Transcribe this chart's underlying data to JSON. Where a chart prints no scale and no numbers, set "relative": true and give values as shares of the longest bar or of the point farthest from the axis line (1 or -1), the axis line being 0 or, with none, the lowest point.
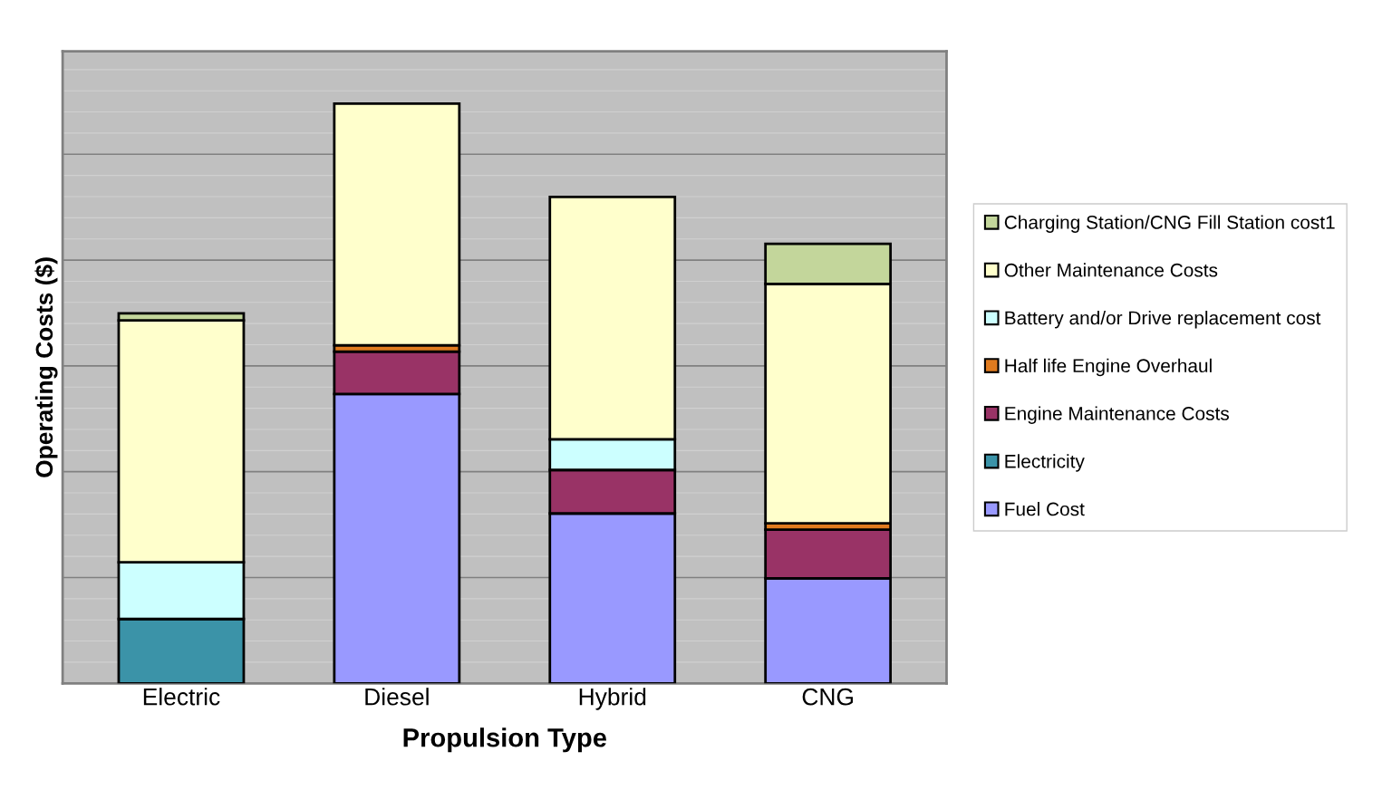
{
  "chart_data": {
    "type": "bar",
    "stacked": true,
    "relative": true,
    "xlabel": "Propulsion Type",
    "ylabel": "Operating Costs ($)",
    "categories": [
      "Electric",
      "Diesel",
      "Hybrid",
      "CNG"
    ],
    "grid": "y",
    "legend": "right",
    "tick_labels": "x",
    "series": [
      {
        "name": "Fuel Cost",
        "color": "#9999ff",
        "values": [
          null,
          0.499,
          0.293,
          0.181
        ]
      },
      {
        "name": "Electricity",
        "color": "#3b93a8",
        "values": [
          0.111,
          null,
          null,
          null
        ]
      },
      {
        "name": "Engine Maintenance Costs",
        "color": "#993366",
        "values": [
          null,
          0.073,
          0.075,
          0.084
        ]
      },
      {
        "name": "Half life Engine Overhaul",
        "color": "#e07b1f",
        "values": [
          null,
          0.011,
          null,
          0.011
        ]
      },
      {
        "name": "Battery and/or Drive replacement cost",
        "color": "#ccffff",
        "values": [
          0.098,
          null,
          0.053,
          null
        ]
      },
      {
        "name": "Other Maintenance Costs",
        "color": "#ffffcc",
        "values": [
          0.417,
          0.417,
          0.418,
          0.413
        ]
      },
      {
        "name": "Charging Station/CNG Fill Station cost1",
        "color": "#c3d69b",
        "values": [
          0.012,
          null,
          null,
          0.069
        ]
      }
    ]
  }
}
